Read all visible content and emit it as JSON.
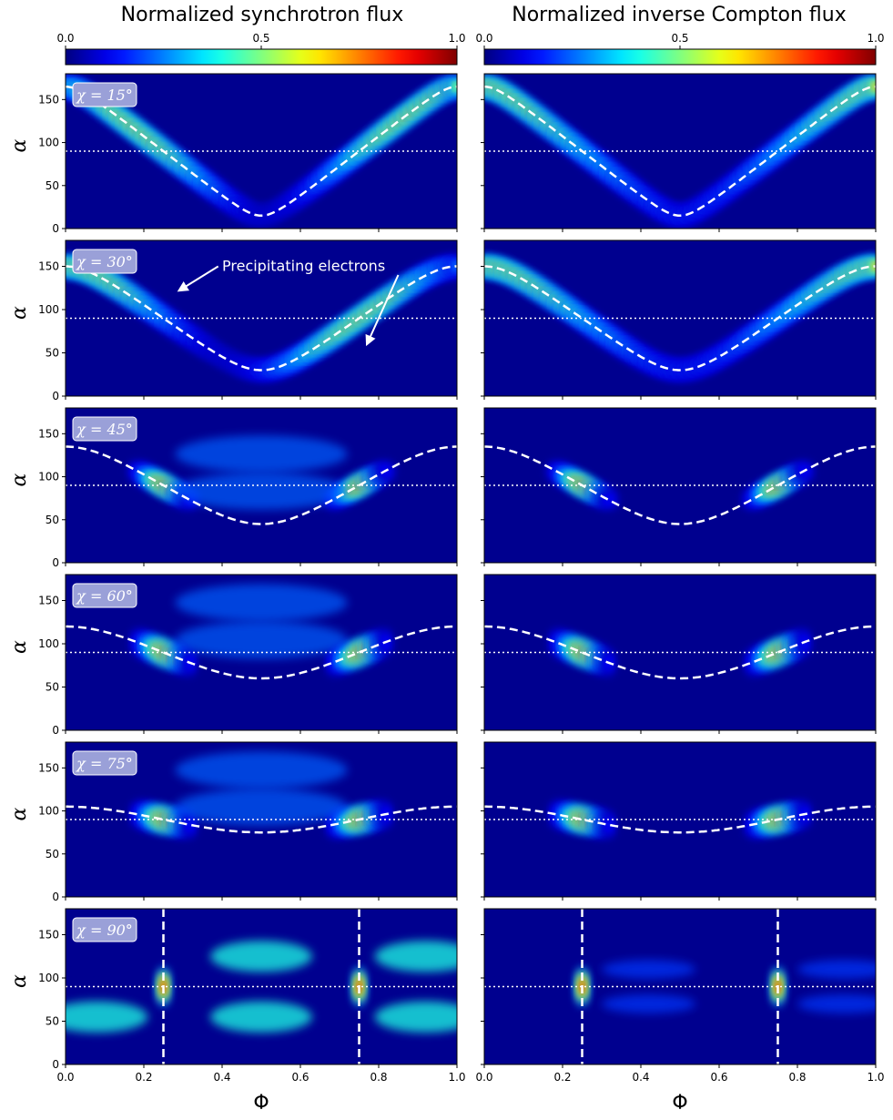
{
  "figure": {
    "columns": [
      {
        "title": "Normalized synchrotron flux",
        "colorbar": {
          "ticks": [
            "0.0",
            "0.5",
            "1.0"
          ],
          "colormap": "jet"
        }
      },
      {
        "title": "Normalized inverse Compton flux",
        "colorbar": {
          "ticks": [
            "0.0",
            "0.5",
            "1.0"
          ],
          "colormap": "jet"
        }
      }
    ],
    "xlabel": "Φ",
    "ylabel": "α",
    "x_ticks": [
      "0.0",
      "0.2",
      "0.4",
      "0.6",
      "0.8",
      "1.0"
    ],
    "y_ticks": [
      "0",
      "50",
      "100",
      "150"
    ],
    "annotation": "Precipitating electrons"
  },
  "chart_data": {
    "type": "heatmap",
    "colormap": "jet",
    "clim": [
      0.0,
      1.0
    ],
    "xlim": [
      0.0,
      1.0
    ],
    "ylim": [
      0,
      180
    ],
    "xlabel": "Φ",
    "ylabel": "α",
    "rows": [
      {
        "chi_label": "χ = 15°",
        "chi": 15
      },
      {
        "chi_label": "χ = 30°",
        "chi": 30
      },
      {
        "chi_label": "χ = 45°",
        "chi": 45
      },
      {
        "chi_label": "χ = 60°",
        "chi": 60
      },
      {
        "chi_label": "χ = 75°",
        "chi": 75
      },
      {
        "chi_label": "χ = 90°",
        "chi": 90
      }
    ],
    "reference_line_alpha": 90,
    "vertical_lines_chi90": [
      0.25,
      0.75
    ]
  },
  "colors": {
    "dashed_curve": "#ffffff",
    "dotted_line": "#ffffff",
    "label_box": "#9aa0d8"
  }
}
